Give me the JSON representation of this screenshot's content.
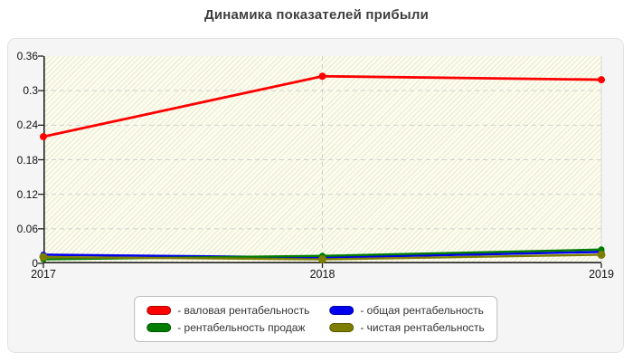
{
  "page": {
    "title": "Динамика показателей прибыли"
  },
  "colors": {
    "page_background": "#ffffff",
    "card_background": "#f5f5f5",
    "card_border": "#e2e2e2",
    "plot_background": "#fdfdee",
    "gridline": "#cfcfcf",
    "axis": "#222222",
    "tick_text": "#121212",
    "title_text": "#3f3f3f",
    "legend_background": "#ffffff",
    "legend_border": "#bdbdbd",
    "series_red": "#fe0000",
    "series_blue": "#0000ee",
    "series_green": "#007d00",
    "series_olive": "#7d7d00"
  },
  "chart_data": {
    "type": "line",
    "title": "Динамика показателей прибыли",
    "categories": [
      "2017",
      "2018",
      "2019"
    ],
    "series": [
      {
        "name": "валовая рентабельность",
        "legend_label": "- валовая рентабельность",
        "color": "#fe0000",
        "values": [
          0.22,
          0.325,
          0.319
        ],
        "line_width": 2.8,
        "marker_radius": 4
      },
      {
        "name": "общая рентабельность",
        "legend_label": "- общая рентабельность",
        "color": "#0000ee",
        "values": [
          0.015,
          0.01,
          0.02
        ],
        "line_width": 2.6,
        "marker_radius": 3.5
      },
      {
        "name": "рентабельность продаж",
        "legend_label": "- рентабельность продаж",
        "color": "#007d00",
        "values": [
          0.007,
          0.013,
          0.024
        ],
        "line_width": 2.4,
        "marker_radius": 3.5
      },
      {
        "name": "чистая рентабельность",
        "legend_label": "- чистая рентабельность",
        "color": "#7d7d00",
        "values": [
          0.011,
          0.007,
          0.015
        ],
        "line_width": 2.4,
        "marker_radius": 4.5
      }
    ],
    "xlabel": "",
    "ylabel": "",
    "ylim": [
      0,
      0.36
    ],
    "yticks": [
      {
        "value": 0,
        "label": "0"
      },
      {
        "value": 0.06,
        "label": "0.06"
      },
      {
        "value": 0.12,
        "label": "0.12"
      },
      {
        "value": 0.18,
        "label": "0.18"
      },
      {
        "value": 0.24,
        "label": "0.24"
      },
      {
        "value": 0.3,
        "label": "0.3"
      },
      {
        "value": 0.36,
        "label": "0.36"
      }
    ],
    "grid": "dashed horizontal lines at each y tick; dashed vertical line at 2018; solid light line at right edge",
    "legend_position": "bottom-center"
  }
}
